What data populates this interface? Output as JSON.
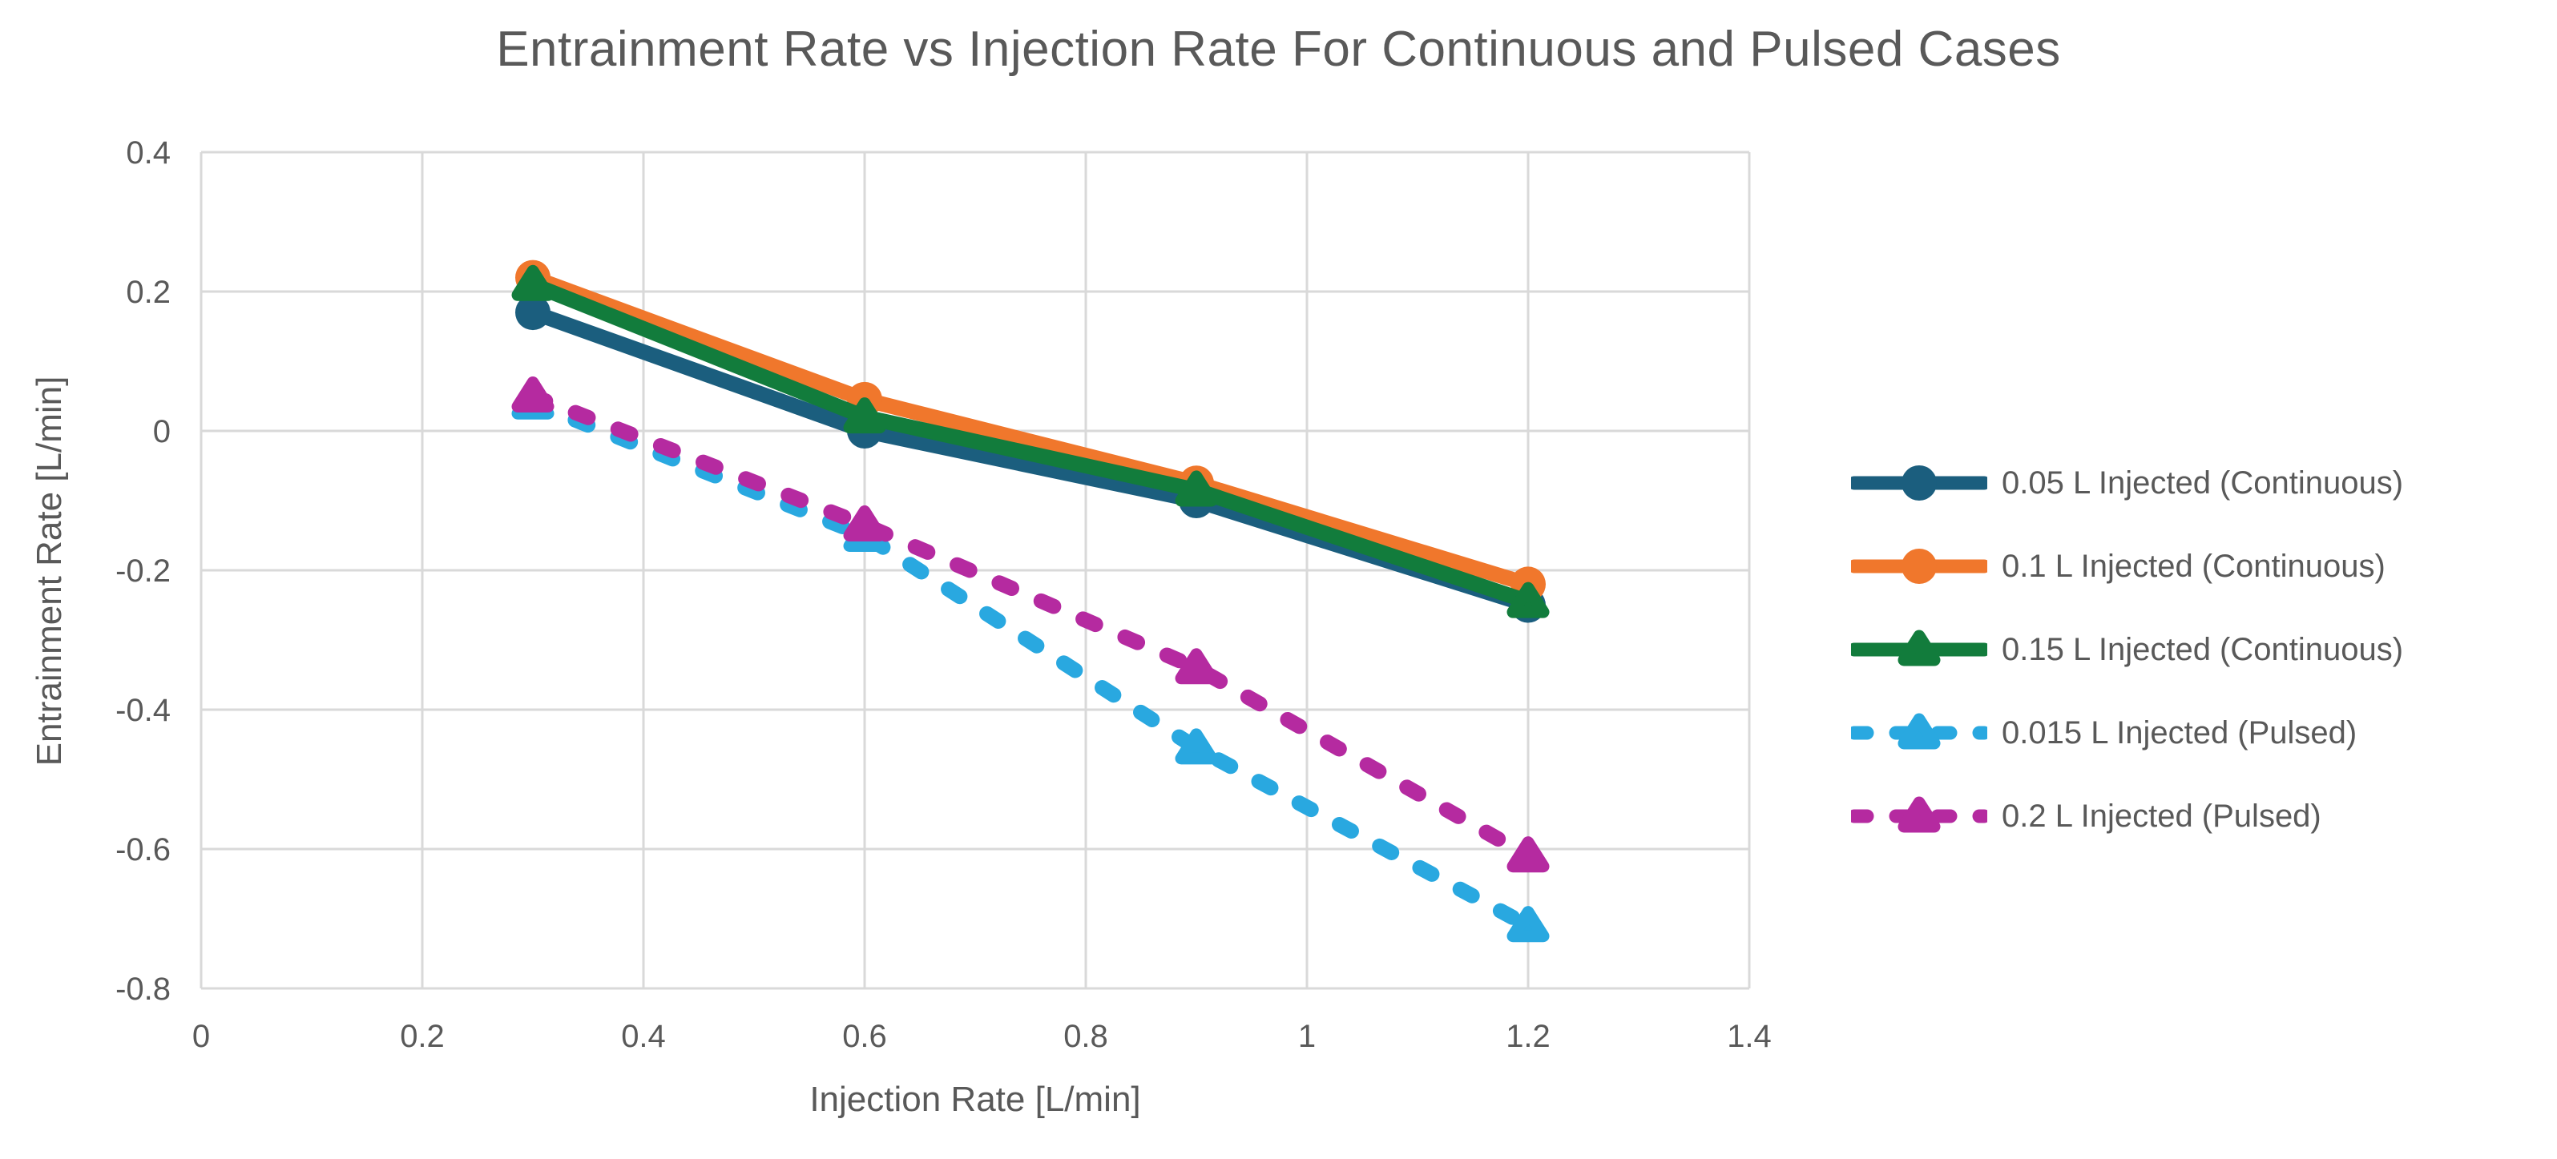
{
  "page_title": "Entrainment Rate vs Injection Rate For Continuous and Pulsed Cases",
  "chart_data": {
    "type": "line",
    "title": "Entrainment Rate vs Injection Rate For Continuous and Pulsed Cases",
    "xlabel": "Injection Rate [L/min]",
    "ylabel": "Entrainment Rate [L/min]",
    "xlim": [
      0,
      1.4
    ],
    "ylim": [
      -0.8,
      0.4
    ],
    "x_tick_values": [
      0,
      0.2,
      0.4,
      0.6,
      0.8,
      1,
      1.2,
      1.4
    ],
    "x_tick_labels": [
      "0",
      "0.2",
      "0.4",
      "0.6",
      "0.8",
      "1",
      "1.2",
      "1.4"
    ],
    "y_tick_values": [
      0.4,
      0.2,
      0,
      -0.2,
      -0.4,
      -0.6,
      -0.8
    ],
    "y_tick_labels": [
      "0.4",
      "0.2",
      "0",
      "-0.2",
      "-0.4",
      "-0.6",
      "-0.8"
    ],
    "grid": true,
    "legend_position": "right",
    "x": [
      0.3,
      0.6,
      0.9,
      1.2
    ],
    "series": [
      {
        "name": "0.05 L Injected (Continuous)",
        "color": "#1B5E7E",
        "line_style": "solid",
        "marker": "circle",
        "values": [
          0.17,
          0.0,
          -0.1,
          -0.25
        ]
      },
      {
        "name": "0.1 L Injected (Continuous)",
        "color": "#F0772C",
        "line_style": "solid",
        "marker": "circle",
        "values": [
          0.22,
          0.045,
          -0.075,
          -0.22
        ]
      },
      {
        "name": "0.15 L Injected (Continuous)",
        "color": "#127C3C",
        "line_style": "solid",
        "marker": "triangle",
        "values": [
          0.21,
          0.02,
          -0.085,
          -0.245
        ]
      },
      {
        "name": "0.015 L Injected (Pulsed)",
        "color": "#29A8E0",
        "line_style": "dashed",
        "marker": "triangle",
        "values": [
          0.04,
          -0.15,
          -0.455,
          -0.71
        ]
      },
      {
        "name": "0.2 L Injected (Pulsed)",
        "color": "#B52AA0",
        "line_style": "dashed",
        "marker": "triangle",
        "values": [
          0.05,
          -0.135,
          -0.34,
          -0.61
        ]
      }
    ],
    "colors": {
      "text": "#595959",
      "grid": "#D9D9D9",
      "background": "#FFFFFF"
    }
  }
}
